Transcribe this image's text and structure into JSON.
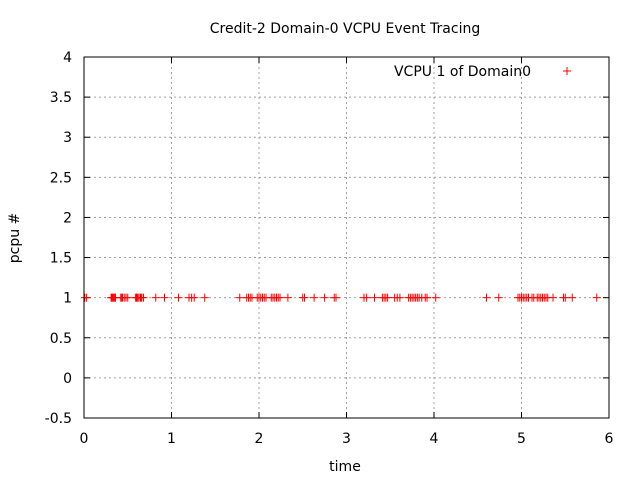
{
  "chart_data": {
    "type": "scatter",
    "title": "Credit-2 Domain-0 VCPU Event Tracing",
    "xlabel": "time",
    "ylabel": "pcpu #",
    "xlim": [
      0,
      6
    ],
    "ylim": [
      -0.5,
      4
    ],
    "x_ticks": [
      "0",
      "1",
      "2",
      "3",
      "4",
      "5",
      "6"
    ],
    "y_ticks": [
      "-0.5",
      "0",
      "0.5",
      "1",
      "1.5",
      "2",
      "2.5",
      "3",
      "3.5",
      "4"
    ],
    "grid": true,
    "legend_position": "top-right",
    "series": [
      {
        "name": "VCPU 1 of Domain0",
        "marker": "+",
        "color": "#ff0000",
        "x": [
          0.01,
          0.03,
          0.31,
          0.32,
          0.33,
          0.34,
          0.35,
          0.36,
          0.42,
          0.43,
          0.44,
          0.46,
          0.48,
          0.5,
          0.59,
          0.6,
          0.61,
          0.62,
          0.64,
          0.65,
          0.66,
          0.68,
          0.82,
          0.92,
          1.08,
          1.2,
          1.23,
          1.26,
          1.38,
          1.78,
          1.86,
          1.88,
          1.9,
          1.92,
          1.98,
          2.0,
          2.02,
          2.04,
          2.06,
          2.08,
          2.14,
          2.16,
          2.18,
          2.2,
          2.22,
          2.24,
          2.33,
          2.5,
          2.52,
          2.63,
          2.75,
          2.86,
          2.88,
          3.2,
          3.23,
          3.32,
          3.41,
          3.43,
          3.45,
          3.47,
          3.55,
          3.58,
          3.61,
          3.71,
          3.73,
          3.75,
          3.77,
          3.79,
          3.81,
          3.83,
          3.86,
          3.9,
          3.92,
          4.02,
          4.6,
          4.74,
          4.96,
          4.98,
          5.0,
          5.02,
          5.04,
          5.06,
          5.08,
          5.12,
          5.14,
          5.18,
          5.2,
          5.22,
          5.24,
          5.26,
          5.28,
          5.3,
          5.36,
          5.48,
          5.5,
          5.58,
          5.86
        ],
        "y": [
          1,
          1,
          1,
          1,
          1,
          1,
          1,
          1,
          1,
          1,
          1,
          1,
          1,
          1,
          1,
          1,
          1,
          1,
          1,
          1,
          1,
          1,
          1,
          1,
          1,
          1,
          1,
          1,
          1,
          1,
          1,
          1,
          1,
          1,
          1,
          1,
          1,
          1,
          1,
          1,
          1,
          1,
          1,
          1,
          1,
          1,
          1,
          1,
          1,
          1,
          1,
          1,
          1,
          1,
          1,
          1,
          1,
          1,
          1,
          1,
          1,
          1,
          1,
          1,
          1,
          1,
          1,
          1,
          1,
          1,
          1,
          1,
          1,
          1,
          1,
          1,
          1,
          1,
          1,
          1,
          1,
          1,
          1,
          1,
          1,
          1,
          1,
          1,
          1,
          1,
          1,
          1,
          1,
          1,
          1,
          1,
          1
        ]
      }
    ]
  }
}
